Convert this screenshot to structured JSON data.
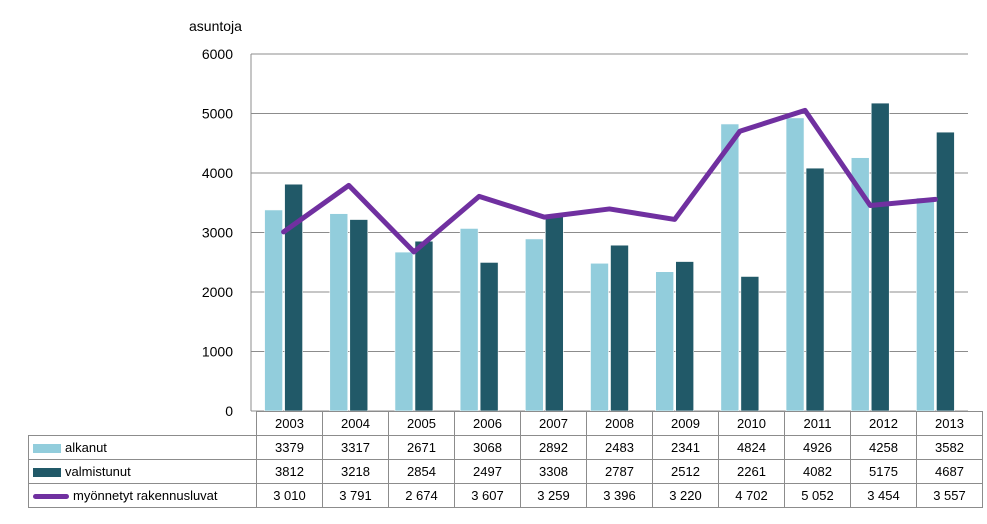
{
  "chart_data": {
    "type": "bar",
    "ylabel": "asuntoja",
    "ylim": [
      0,
      6000
    ],
    "yticks": [
      0,
      1000,
      2000,
      3000,
      4000,
      5000,
      6000
    ],
    "grid": true,
    "categories": [
      "2003",
      "2004",
      "2005",
      "2006",
      "2007",
      "2008",
      "2009",
      "2010",
      "2011",
      "2012",
      "2013"
    ],
    "series": [
      {
        "name": "alkanut",
        "type": "bar",
        "color": "#92cddc",
        "values": [
          3379,
          3317,
          2671,
          3068,
          2892,
          2483,
          2341,
          4824,
          4926,
          4258,
          3582
        ],
        "labels": [
          "3379",
          "3317",
          "2671",
          "3068",
          "2892",
          "2483",
          "2341",
          "4824",
          "4926",
          "4258",
          "3582"
        ]
      },
      {
        "name": "valmistunut",
        "type": "bar",
        "color": "#215968",
        "values": [
          3812,
          3218,
          2854,
          2497,
          3308,
          2787,
          2512,
          2261,
          4082,
          5175,
          4687
        ],
        "labels": [
          "3812",
          "3218",
          "2854",
          "2497",
          "3308",
          "2787",
          "2512",
          "2261",
          "4082",
          "5175",
          "4687"
        ]
      },
      {
        "name": "myönnetyt rakennusluvat",
        "type": "line",
        "color": "#7030a0",
        "values": [
          3010,
          3791,
          2674,
          3607,
          3259,
          3396,
          3220,
          4702,
          5052,
          3454,
          3557
        ],
        "labels": [
          "3 010",
          "3 791",
          "2 674",
          "3 607",
          "3 259",
          "3 396",
          "3 220",
          "4 702",
          "5 052",
          "3 454",
          "3 557"
        ]
      }
    ]
  }
}
